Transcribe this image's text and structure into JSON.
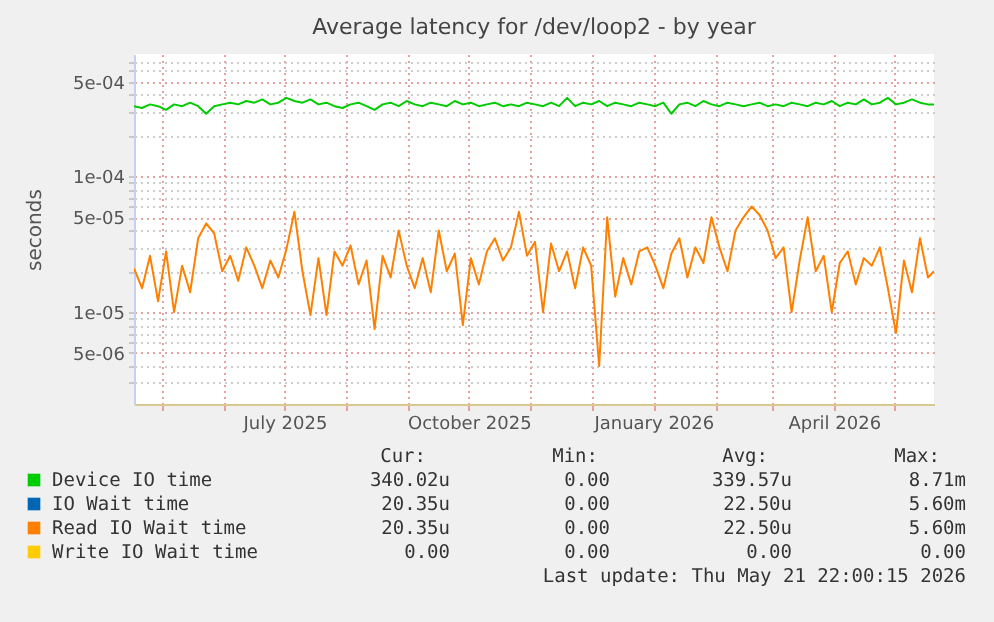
{
  "chart_data": {
    "type": "line",
    "title": "Average latency for /dev/loop2 - by year",
    "ylabel": "seconds",
    "log": "y",
    "grid": true,
    "legend": "bottom left",
    "marker": "none",
    "line_style": "solid",
    "ylim": [
      2.1e-06,
      0.0008
    ],
    "yticks": [
      {
        "value": 3e-06,
        "label": null
      },
      {
        "value": 4e-06,
        "label": null
      },
      {
        "value": 5e-06,
        "label": "5e-06"
      },
      {
        "value": 6e-06,
        "label": null
      },
      {
        "value": 7e-06,
        "label": null
      },
      {
        "value": 8e-06,
        "label": null
      },
      {
        "value": 9e-06,
        "label": null
      },
      {
        "value": 1e-05,
        "label": "1e-05"
      },
      {
        "value": 2e-05,
        "label": null
      },
      {
        "value": 3e-05,
        "label": null
      },
      {
        "value": 4e-05,
        "label": null
      },
      {
        "value": 5e-05,
        "label": "5e-05"
      },
      {
        "value": 6e-05,
        "label": null
      },
      {
        "value": 7e-05,
        "label": null
      },
      {
        "value": 8e-05,
        "label": null
      },
      {
        "value": 9e-05,
        "label": null
      },
      {
        "value": 0.0001,
        "label": "1e-04"
      },
      {
        "value": 0.0002,
        "label": null
      },
      {
        "value": 0.0003,
        "label": null
      },
      {
        "value": 0.0004,
        "label": null
      },
      {
        "value": 0.0005,
        "label": "5e-04"
      },
      {
        "value": 0.0006,
        "label": null
      },
      {
        "value": 0.0007,
        "label": null
      }
    ],
    "xlim": [
      "2025-04-17",
      "2026-05-21"
    ],
    "xticks": [
      {
        "value": "2025-05-01",
        "label": null
      },
      {
        "value": "2025-06-01",
        "label": null
      },
      {
        "value": "2025-07-01",
        "label": "July 2025"
      },
      {
        "value": "2025-08-01",
        "label": null
      },
      {
        "value": "2025-09-01",
        "label": null
      },
      {
        "value": "2025-10-01",
        "label": "October 2025"
      },
      {
        "value": "2025-11-01",
        "label": null
      },
      {
        "value": "2025-12-01",
        "label": null
      },
      {
        "value": "2026-01-01",
        "label": "January 2026"
      },
      {
        "value": "2026-02-01",
        "label": null
      },
      {
        "value": "2026-03-01",
        "label": null
      },
      {
        "value": "2026-04-01",
        "label": "April 2026"
      },
      {
        "value": "2026-05-01",
        "label": null
      }
    ],
    "x": [
      "2025-04-17",
      "2025-04-21",
      "2025-04-25",
      "2025-04-29",
      "2025-05-03",
      "2025-05-07",
      "2025-05-11",
      "2025-05-15",
      "2025-05-19",
      "2025-05-23",
      "2025-05-27",
      "2025-05-31",
      "2025-06-04",
      "2025-06-08",
      "2025-06-12",
      "2025-06-16",
      "2025-06-20",
      "2025-06-24",
      "2025-06-28",
      "2025-07-02",
      "2025-07-06",
      "2025-07-10",
      "2025-07-14",
      "2025-07-18",
      "2025-07-22",
      "2025-07-26",
      "2025-07-30",
      "2025-08-03",
      "2025-08-07",
      "2025-08-11",
      "2025-08-15",
      "2025-08-19",
      "2025-08-23",
      "2025-08-27",
      "2025-08-31",
      "2025-09-04",
      "2025-09-08",
      "2025-09-12",
      "2025-09-16",
      "2025-09-20",
      "2025-09-24",
      "2025-09-28",
      "2025-10-02",
      "2025-10-06",
      "2025-10-10",
      "2025-10-14",
      "2025-10-18",
      "2025-10-22",
      "2025-10-26",
      "2025-10-30",
      "2025-11-03",
      "2025-11-07",
      "2025-11-11",
      "2025-11-15",
      "2025-11-19",
      "2025-11-23",
      "2025-11-27",
      "2025-12-01",
      "2025-12-05",
      "2025-12-09",
      "2025-12-13",
      "2025-12-17",
      "2025-12-21",
      "2025-12-25",
      "2025-12-29",
      "2026-01-02",
      "2026-01-06",
      "2026-01-10",
      "2026-01-14",
      "2026-01-18",
      "2026-01-22",
      "2026-01-26",
      "2026-01-30",
      "2026-02-03",
      "2026-02-07",
      "2026-02-11",
      "2026-02-15",
      "2026-02-19",
      "2026-02-23",
      "2026-02-27",
      "2026-03-03",
      "2026-03-07",
      "2026-03-11",
      "2026-03-15",
      "2026-03-19",
      "2026-03-23",
      "2026-03-27",
      "2026-03-31",
      "2026-04-04",
      "2026-04-08",
      "2026-04-12",
      "2026-04-16",
      "2026-04-20",
      "2026-04-24",
      "2026-04-28",
      "2026-05-02",
      "2026-05-06",
      "2026-05-10",
      "2026-05-14",
      "2026-05-18",
      "2026-05-21"
    ],
    "series": [
      {
        "name": "Device IO time",
        "color": "#00cc00",
        "values": [
          0.00033,
          0.00032,
          0.00034,
          0.00033,
          0.00031,
          0.00034,
          0.00033,
          0.00035,
          0.00033,
          0.00029,
          0.00033,
          0.00034,
          0.00035,
          0.00034,
          0.00036,
          0.00035,
          0.00037,
          0.00034,
          0.00035,
          0.00038,
          0.00036,
          0.00035,
          0.00037,
          0.00034,
          0.00035,
          0.00033,
          0.00032,
          0.00034,
          0.00035,
          0.00033,
          0.00031,
          0.00034,
          0.00035,
          0.00033,
          0.00036,
          0.00034,
          0.00033,
          0.00035,
          0.00034,
          0.00033,
          0.00036,
          0.00034,
          0.00035,
          0.00033,
          0.00034,
          0.00035,
          0.00033,
          0.00034,
          0.00033,
          0.00035,
          0.00034,
          0.00033,
          0.00035,
          0.00033,
          0.00038,
          0.00033,
          0.00035,
          0.00034,
          0.00036,
          0.00033,
          0.00035,
          0.00034,
          0.00033,
          0.00035,
          0.00034,
          0.00033,
          0.00035,
          0.00029,
          0.00034,
          0.00035,
          0.00033,
          0.00036,
          0.00034,
          0.00033,
          0.00035,
          0.00034,
          0.00033,
          0.00034,
          0.00035,
          0.00033,
          0.00034,
          0.00033,
          0.00035,
          0.00034,
          0.00033,
          0.00035,
          0.00034,
          0.00036,
          0.00033,
          0.00035,
          0.00034,
          0.00037,
          0.00034,
          0.00035,
          0.00038,
          0.00034,
          0.00035,
          0.00037,
          0.00035,
          0.00034,
          0.00034
        ]
      },
      {
        "name": "IO Wait time",
        "color": "#0066b3",
        "values": [
          null,
          null,
          null,
          null,
          null,
          null,
          null,
          null,
          null,
          null,
          null,
          null,
          null,
          null,
          null,
          null,
          null,
          null,
          null,
          null,
          null,
          null,
          null,
          null,
          null,
          null,
          null,
          null,
          null,
          null,
          null,
          null,
          null,
          null,
          null,
          null,
          null,
          null,
          null,
          null,
          null,
          null,
          null,
          null,
          null,
          null,
          null,
          null,
          null,
          null,
          null,
          null,
          null,
          null,
          null,
          null,
          null,
          null,
          null,
          null,
          null,
          null,
          null,
          null,
          null,
          null,
          null,
          null,
          null,
          null,
          null,
          null,
          null,
          null,
          null,
          null,
          null,
          null,
          null,
          null,
          null,
          null,
          null,
          null,
          null,
          null,
          null,
          null,
          null,
          null,
          null,
          null,
          null,
          null,
          null,
          null,
          null,
          null,
          null,
          null,
          null
        ]
      },
      {
        "name": "Read IO Wait time",
        "color": "#ff8000",
        "values": [
          2.1e-05,
          1.5e-05,
          2.6e-05,
          1.2e-05,
          2.8e-05,
          1e-05,
          2.2e-05,
          1.4e-05,
          3.5e-05,
          4.5e-05,
          3.8e-05,
          2e-05,
          2.6e-05,
          1.7e-05,
          3e-05,
          2.2e-05,
          1.5e-05,
          2.4e-05,
          1.8e-05,
          2.9e-05,
          5.5e-05,
          2e-05,
          9.5e-06,
          2.5e-05,
          9.5e-06,
          2.8e-05,
          2.2e-05,
          3.1e-05,
          1.6e-05,
          2.4e-05,
          7.5e-06,
          2.6e-05,
          1.8e-05,
          4e-05,
          2.2e-05,
          1.5e-05,
          2.5e-05,
          1.4e-05,
          4e-05,
          2e-05,
          2.7e-05,
          8e-06,
          2.5e-05,
          1.6e-05,
          2.8e-05,
          3.5e-05,
          2.4e-05,
          3e-05,
          5.5e-05,
          2.6e-05,
          3.3e-05,
          1e-05,
          3.2e-05,
          2e-05,
          2.8e-05,
          1.5e-05,
          3e-05,
          2.2e-05,
          4e-06,
          5e-05,
          1.3e-05,
          2.5e-05,
          1.6e-05,
          2.8e-05,
          3e-05,
          2.2e-05,
          1.5e-05,
          2.7e-05,
          3.5e-05,
          1.8e-05,
          3e-05,
          2.3e-05,
          5e-05,
          3e-05,
          2e-05,
          4e-05,
          5e-05,
          6e-05,
          5.2e-05,
          4e-05,
          2.5e-05,
          3e-05,
          1e-05,
          2.4e-05,
          5e-05,
          2e-05,
          2.6e-05,
          1e-05,
          2.3e-05,
          2.8e-05,
          1.6e-05,
          2.5e-05,
          2.2e-05,
          3e-05,
          1.5e-05,
          7e-06,
          2.4e-05,
          1.4e-05,
          3.5e-05,
          1.8e-05,
          2e-05
        ]
      },
      {
        "name": "Write IO Wait time",
        "color": "#ffcc00",
        "values": [
          null,
          null,
          null,
          null,
          null,
          null,
          null,
          null,
          null,
          null,
          null,
          null,
          null,
          null,
          null,
          null,
          null,
          null,
          null,
          null,
          null,
          null,
          null,
          null,
          null,
          null,
          null,
          null,
          null,
          null,
          null,
          null,
          null,
          null,
          null,
          null,
          null,
          null,
          null,
          null,
          null,
          null,
          null,
          null,
          null,
          null,
          null,
          null,
          null,
          null,
          null,
          null,
          null,
          null,
          null,
          null,
          null,
          null,
          null,
          null,
          null,
          null,
          null,
          null,
          null,
          null,
          null,
          null,
          null,
          null,
          null,
          null,
          null,
          null,
          null,
          null,
          null,
          null,
          null,
          null,
          null,
          null,
          null,
          null,
          null,
          null,
          null,
          null,
          null,
          null,
          null,
          null,
          null,
          null,
          null,
          null,
          null,
          null,
          null,
          null,
          null
        ]
      }
    ],
    "annotations": [
      "Cur:",
      "Min:",
      "Avg:",
      "Max:",
      "340.02u",
      "0.00",
      "339.57u",
      "8.71m",
      "20.35u",
      "0.00",
      "22.50u",
      "5.60m",
      "20.35u",
      "0.00",
      "22.50u",
      "5.60m",
      "0.00",
      "0.00",
      "0.00",
      "0.00",
      "Last update: Thu May 21 22:00:15 2026"
    ]
  }
}
